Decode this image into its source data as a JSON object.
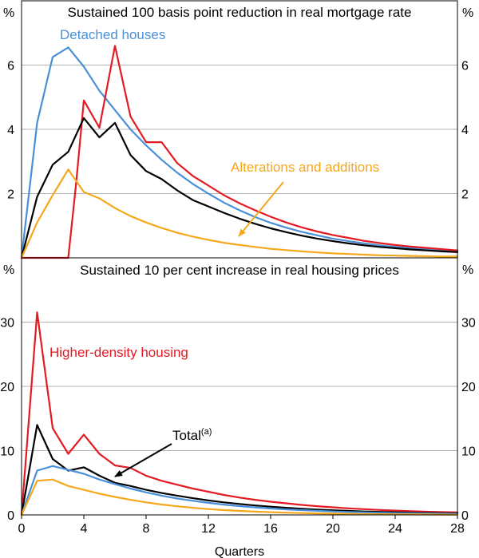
{
  "chart_data": [
    {
      "type": "line",
      "title": "Sustained 100 basis point reduction in real mortgage rate",
      "unit_left": "%",
      "unit_right": "%",
      "ylim": [
        0,
        8
      ],
      "yticks": [
        2,
        4,
        6
      ],
      "xlim": [
        0,
        28
      ],
      "grid": true,
      "series": [
        {
          "name": "Detached houses",
          "color": "#4a90d9",
          "x": [
            0,
            1,
            2,
            3,
            4,
            5,
            6,
            7,
            8,
            9,
            10,
            11,
            12,
            13,
            14,
            15,
            16,
            17,
            18,
            19,
            20,
            21,
            22,
            23,
            24,
            25,
            26,
            27,
            28
          ],
          "y": [
            0,
            4.2,
            6.25,
            6.55,
            5.95,
            5.2,
            4.6,
            4.0,
            3.5,
            3.05,
            2.65,
            2.3,
            2.0,
            1.72,
            1.48,
            1.27,
            1.09,
            0.94,
            0.81,
            0.7,
            0.6,
            0.52,
            0.45,
            0.39,
            0.34,
            0.3,
            0.26,
            0.23,
            0.2
          ]
        },
        {
          "name": "Higher-density housing",
          "color": "#e31b23",
          "x": [
            0,
            1,
            2,
            2.5,
            3,
            3.5,
            4,
            5,
            6,
            7,
            8,
            9,
            10,
            11,
            12,
            13,
            14,
            15,
            16,
            17,
            18,
            19,
            20,
            21,
            22,
            23,
            24,
            25,
            26,
            27,
            28
          ],
          "y": [
            0,
            0,
            0,
            0,
            0,
            2.3,
            4.9,
            4.05,
            6.6,
            4.4,
            3.6,
            3.6,
            2.95,
            2.55,
            2.25,
            1.95,
            1.7,
            1.48,
            1.28,
            1.1,
            0.95,
            0.82,
            0.71,
            0.62,
            0.53,
            0.46,
            0.4,
            0.35,
            0.31,
            0.27,
            0.23
          ]
        },
        {
          "name": "Total",
          "color": "#000000",
          "x": [
            0,
            1,
            2,
            3,
            4,
            5,
            6,
            7,
            8,
            9,
            10,
            11,
            12,
            13,
            14,
            15,
            16,
            17,
            18,
            19,
            20,
            21,
            22,
            23,
            24,
            25,
            26,
            27,
            28
          ],
          "y": [
            0,
            1.9,
            2.9,
            3.3,
            4.35,
            3.75,
            4.2,
            3.2,
            2.7,
            2.45,
            2.1,
            1.8,
            1.6,
            1.4,
            1.22,
            1.06,
            0.92,
            0.8,
            0.69,
            0.6,
            0.52,
            0.45,
            0.39,
            0.34,
            0.3,
            0.26,
            0.23,
            0.2,
            0.18
          ]
        },
        {
          "name": "Alterations and additions",
          "color": "#f5a81c",
          "x": [
            0,
            1,
            2,
            3,
            4,
            5,
            6,
            7,
            8,
            9,
            10,
            11,
            12,
            13,
            14,
            15,
            16,
            17,
            18,
            19,
            20,
            21,
            22,
            23,
            24,
            25,
            26,
            27,
            28
          ],
          "y": [
            0,
            1.1,
            1.95,
            2.75,
            2.05,
            1.85,
            1.55,
            1.3,
            1.1,
            0.93,
            0.78,
            0.66,
            0.56,
            0.47,
            0.4,
            0.34,
            0.28,
            0.24,
            0.2,
            0.17,
            0.14,
            0.12,
            0.1,
            0.08,
            0.07,
            0.06,
            0.05,
            0.04,
            0.04
          ]
        }
      ],
      "annotations": [
        {
          "text": "Detached houses",
          "series": "Detached houses"
        },
        {
          "text": "Alterations and additions",
          "series": "Alterations and additions"
        }
      ]
    },
    {
      "type": "line",
      "title": "Sustained 10 per cent increase in real housing prices",
      "unit_left": "%",
      "unit_right": "%",
      "ylim": [
        0,
        40
      ],
      "yticks": [
        0,
        10,
        20,
        30
      ],
      "xlim": [
        0,
        28
      ],
      "xticks": [
        0,
        4,
        8,
        12,
        16,
        20,
        24,
        28
      ],
      "xlabel": "Quarters",
      "grid": true,
      "series": [
        {
          "name": "Higher-density housing",
          "color": "#e31b23",
          "x": [
            0,
            1,
            2,
            3,
            4,
            5,
            6,
            7,
            8,
            9,
            10,
            11,
            12,
            13,
            14,
            15,
            16,
            17,
            18,
            19,
            20,
            21,
            22,
            23,
            24,
            25,
            26,
            27,
            28
          ],
          "y": [
            0,
            31.5,
            13.5,
            9.5,
            12.5,
            9.5,
            7.7,
            7.3,
            6.1,
            5.3,
            4.7,
            4.1,
            3.6,
            3.1,
            2.7,
            2.35,
            2.05,
            1.8,
            1.55,
            1.35,
            1.18,
            1.02,
            0.89,
            0.77,
            0.67,
            0.58,
            0.5,
            0.44,
            0.38
          ]
        },
        {
          "name": "Total",
          "color": "#000000",
          "x": [
            0,
            1,
            2,
            3,
            4,
            5,
            6,
            7,
            8,
            9,
            10,
            11,
            12,
            13,
            14,
            15,
            16,
            17,
            18,
            19,
            20,
            21,
            22,
            23,
            24,
            25,
            26,
            27,
            28
          ],
          "y": [
            0,
            14.0,
            8.7,
            6.9,
            7.4,
            6.1,
            5.0,
            4.5,
            3.9,
            3.4,
            3.0,
            2.6,
            2.25,
            1.95,
            1.7,
            1.47,
            1.28,
            1.11,
            0.96,
            0.83,
            0.72,
            0.62,
            0.54,
            0.47,
            0.41,
            0.35,
            0.31,
            0.27,
            0.23
          ]
        },
        {
          "name": "Detached houses",
          "color": "#4a90d9",
          "x": [
            0,
            1,
            2,
            3,
            4,
            5,
            6,
            7,
            8,
            9,
            10,
            11,
            12,
            13,
            14,
            15,
            16,
            17,
            18,
            19,
            20,
            21,
            22,
            23,
            24,
            25,
            26,
            27,
            28
          ],
          "y": [
            0,
            6.9,
            7.6,
            7.0,
            6.4,
            5.5,
            4.8,
            4.1,
            3.5,
            3.0,
            2.55,
            2.2,
            1.88,
            1.6,
            1.37,
            1.17,
            1.0,
            0.86,
            0.74,
            0.63,
            0.54,
            0.46,
            0.4,
            0.34,
            0.29,
            0.25,
            0.22,
            0.19,
            0.16
          ]
        },
        {
          "name": "Alterations and additions",
          "color": "#f5a81c",
          "x": [
            0,
            1,
            2,
            3,
            4,
            5,
            6,
            7,
            8,
            9,
            10,
            11,
            12,
            13,
            14,
            15,
            16,
            17,
            18,
            19,
            20,
            21,
            22,
            23,
            24,
            25,
            26,
            27,
            28
          ],
          "y": [
            0,
            5.3,
            5.5,
            4.5,
            3.9,
            3.3,
            2.8,
            2.35,
            1.95,
            1.62,
            1.34,
            1.1,
            0.91,
            0.75,
            0.62,
            0.51,
            0.42,
            0.35,
            0.29,
            0.24,
            0.2,
            0.16,
            0.13,
            0.11,
            0.09,
            0.08,
            0.06,
            0.05,
            0.04
          ]
        }
      ],
      "annotations": [
        {
          "text": "Higher-density housing",
          "series": "Higher-density housing"
        },
        {
          "text": "Total",
          "superscript": "(a)",
          "series": "Total"
        }
      ]
    }
  ]
}
